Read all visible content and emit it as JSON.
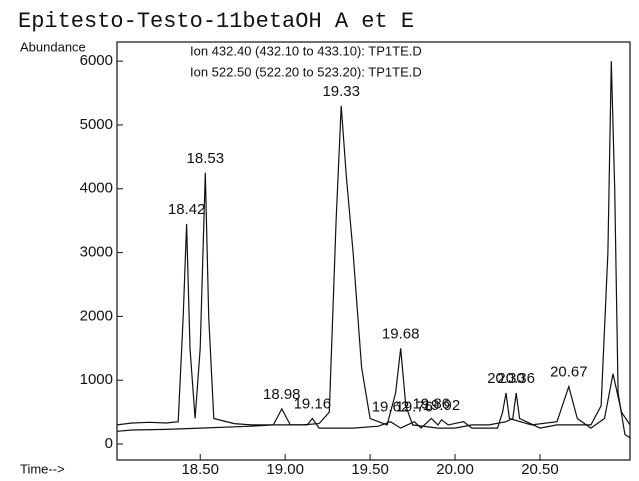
{
  "chart_data": {
    "type": "line",
    "title": "Epitesto-Testo-11betaOH A et E",
    "ylabel": "Abundance",
    "xlabel": "Time-->",
    "xlim": [
      18.01,
      21.03
    ],
    "ylim": [
      -250,
      6300
    ],
    "xticks": [
      {
        "value": 18.5,
        "label": "18.50"
      },
      {
        "value": 19,
        "label": "19.00"
      },
      {
        "value": 19.5,
        "label": "19.50"
      },
      {
        "value": 20,
        "label": "20.00"
      },
      {
        "value": 20.5,
        "label": "20.50"
      }
    ],
    "yticks": [
      0,
      1000,
      2000,
      3000,
      4000,
      5000,
      6000
    ],
    "series": [
      {
        "name": "Ion 432.40 (432.10 to 433.10): TP1TE.D",
        "color": "#111111",
        "x": [
          18.01,
          18.1,
          18.2,
          18.3,
          18.37,
          18.4,
          18.42,
          18.44,
          18.47,
          18.5,
          18.53,
          18.55,
          18.58,
          18.7,
          18.8,
          18.95,
          19.1,
          19.2,
          19.26,
          19.3,
          19.33,
          19.36,
          19.4,
          19.45,
          19.5,
          19.6,
          19.65,
          19.68,
          19.71,
          19.75,
          19.9,
          20.0,
          20.1,
          20.2,
          20.3,
          20.34,
          20.36,
          20.38,
          20.5,
          20.6,
          20.8,
          20.86,
          20.9,
          20.92,
          20.94,
          20.96,
          21.0,
          21.03
        ],
        "values": [
          300,
          330,
          340,
          330,
          350,
          2000,
          3450,
          1500,
          400,
          1500,
          4250,
          2000,
          400,
          320,
          300,
          300,
          300,
          320,
          500,
          3500,
          5300,
          4200,
          3000,
          1200,
          400,
          300,
          800,
          1500,
          600,
          300,
          250,
          250,
          300,
          300,
          350,
          400,
          800,
          400,
          250,
          300,
          300,
          600,
          3000,
          6000,
          4000,
          800,
          150,
          100
        ]
      },
      {
        "name": "Ion 522.50 (522.20 to 523.20): TP1TE.D",
        "color": "#111111",
        "x": [
          18.01,
          18.1,
          18.3,
          18.5,
          18.8,
          18.93,
          18.98,
          19.03,
          19.13,
          19.16,
          19.2,
          19.4,
          19.55,
          19.62,
          19.68,
          19.76,
          19.8,
          19.86,
          19.9,
          19.92,
          19.96,
          20.05,
          20.1,
          20.25,
          20.28,
          20.3,
          20.32,
          20.45,
          20.6,
          20.67,
          20.72,
          20.8,
          20.88,
          20.93,
          20.98,
          21.03
        ],
        "values": [
          200,
          220,
          230,
          250,
          280,
          300,
          550,
          300,
          300,
          400,
          250,
          250,
          280,
          350,
          250,
          350,
          250,
          400,
          300,
          380,
          300,
          350,
          250,
          250,
          500,
          800,
          400,
          300,
          350,
          900,
          400,
          250,
          400,
          1100,
          500,
          300
        ]
      }
    ],
    "peaks": [
      {
        "label": "18.42",
        "x": 18.42,
        "y": 3450
      },
      {
        "label": "18.53",
        "x": 18.53,
        "y": 4250
      },
      {
        "label": "19.33",
        "x": 19.33,
        "y": 5300
      },
      {
        "label": "18.98",
        "x": 18.98,
        "y": 550
      },
      {
        "label": "19.16",
        "x": 19.16,
        "y": 400
      },
      {
        "label": "19.68",
        "x": 19.68,
        "y": 1500
      },
      {
        "label": "19.62",
        "x": 19.62,
        "y": 350
      },
      {
        "label": "19.76",
        "x": 19.76,
        "y": 350
      },
      {
        "label": "19.86",
        "x": 19.86,
        "y": 400
      },
      {
        "label": "19.92",
        "x": 19.92,
        "y": 380
      },
      {
        "label": "20.30",
        "x": 20.3,
        "y": 800
      },
      {
        "label": "20.36",
        "x": 20.36,
        "y": 800
      },
      {
        "label": "20.67",
        "x": 20.67,
        "y": 900
      }
    ]
  }
}
